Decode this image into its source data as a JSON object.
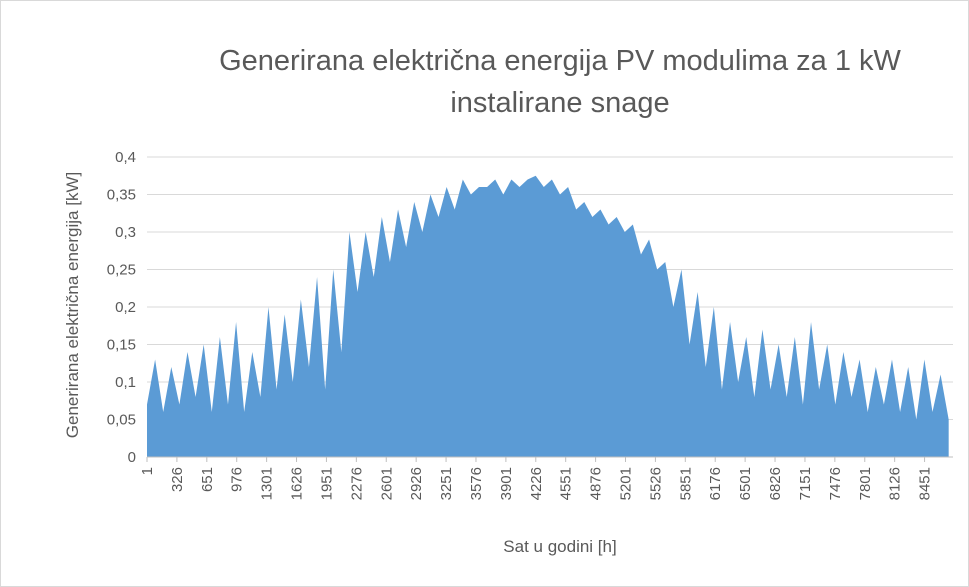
{
  "chart_data": {
    "type": "area",
    "title": "Generirana električna energija PV modulima za 1 kW instalirane snage",
    "x_label": "Sat u godini [h]",
    "y_label": "Generirana električna energija [kW]",
    "color": "#5b9bd5",
    "grid": true,
    "x": [
      1,
      89,
      177,
      265,
      353,
      441,
      529,
      617,
      705,
      793,
      881,
      969,
      1057,
      1145,
      1233,
      1321,
      1409,
      1497,
      1585,
      1673,
      1761,
      1849,
      1937,
      2025,
      2113,
      2201,
      2289,
      2377,
      2465,
      2553,
      2641,
      2729,
      2817,
      2905,
      2993,
      3081,
      3169,
      3257,
      3345,
      3433,
      3521,
      3609,
      3697,
      3785,
      3873,
      3961,
      4049,
      4137,
      4225,
      4313,
      4401,
      4489,
      4577,
      4665,
      4753,
      4841,
      4929,
      5017,
      5105,
      5193,
      5281,
      5369,
      5457,
      5545,
      5633,
      5721,
      5809,
      5897,
      5985,
      6073,
      6161,
      6249,
      6337,
      6425,
      6513,
      6601,
      6689,
      6777,
      6865,
      6953,
      7041,
      7129,
      7217,
      7305,
      7393,
      7481,
      7569,
      7657,
      7745,
      7833,
      7921,
      8009,
      8097,
      8185,
      8273,
      8361,
      8449,
      8537,
      8625,
      8713
    ],
    "values": [
      0.07,
      0.13,
      0.06,
      0.12,
      0.07,
      0.14,
      0.08,
      0.15,
      0.06,
      0.16,
      0.07,
      0.18,
      0.06,
      0.14,
      0.08,
      0.2,
      0.09,
      0.19,
      0.1,
      0.21,
      0.12,
      0.24,
      0.09,
      0.25,
      0.14,
      0.3,
      0.22,
      0.3,
      0.24,
      0.32,
      0.26,
      0.33,
      0.28,
      0.34,
      0.3,
      0.35,
      0.32,
      0.36,
      0.33,
      0.37,
      0.35,
      0.36,
      0.36,
      0.37,
      0.35,
      0.37,
      0.36,
      0.37,
      0.375,
      0.36,
      0.37,
      0.35,
      0.36,
      0.33,
      0.34,
      0.32,
      0.33,
      0.31,
      0.32,
      0.3,
      0.31,
      0.27,
      0.29,
      0.25,
      0.26,
      0.2,
      0.25,
      0.15,
      0.22,
      0.12,
      0.2,
      0.09,
      0.18,
      0.1,
      0.16,
      0.08,
      0.17,
      0.09,
      0.15,
      0.08,
      0.16,
      0.07,
      0.18,
      0.09,
      0.15,
      0.07,
      0.14,
      0.08,
      0.13,
      0.06,
      0.12,
      0.07,
      0.13,
      0.06,
      0.12,
      0.05,
      0.13,
      0.06,
      0.11,
      0.05
    ],
    "xlim": [
      1,
      8760
    ],
    "xticks": [
      1,
      326,
      651,
      976,
      1301,
      1626,
      1951,
      2276,
      2601,
      2926,
      3251,
      3576,
      3901,
      4226,
      4551,
      4876,
      5201,
      5526,
      5851,
      6176,
      6501,
      6826,
      7151,
      7476,
      7801,
      8126,
      8451
    ],
    "ylim": [
      0,
      0.4
    ],
    "yticks": [
      0,
      {
        "value": 0.05,
        "label": "0,05"
      },
      {
        "value": 0.1,
        "label": "0,1"
      },
      {
        "value": 0.15,
        "label": "0,15"
      },
      {
        "value": 0.2,
        "label": "0,2"
      },
      {
        "value": 0.25,
        "label": "0,25"
      },
      {
        "value": 0.3,
        "label": "0,3"
      },
      {
        "value": 0.35,
        "label": "0,35"
      },
      {
        "value": 0.4,
        "label": "0,4"
      }
    ]
  }
}
